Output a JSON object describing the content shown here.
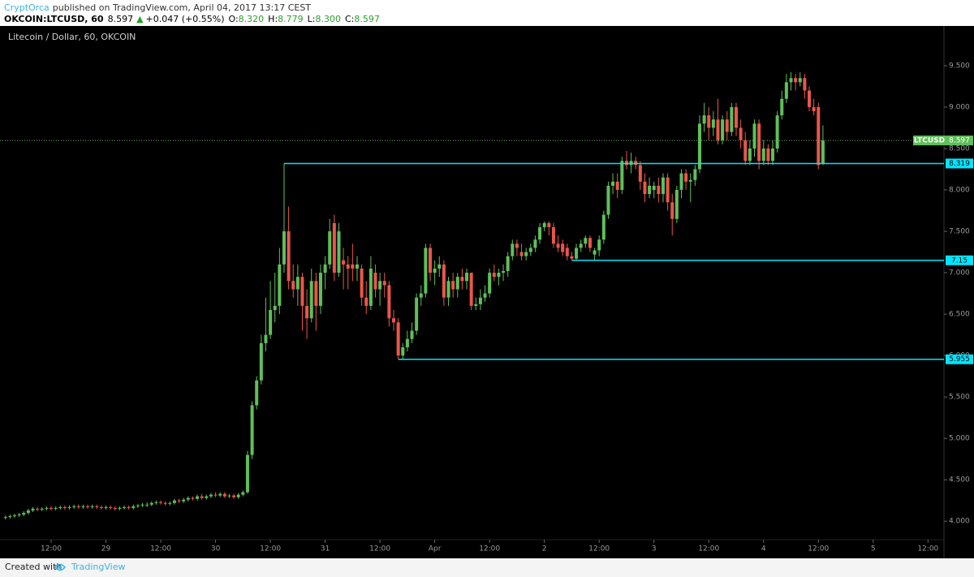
{
  "header": {
    "author": "CryptOrca",
    "published": "published on TradingView.com, April 04, 2017 13:17 CEST",
    "symbol": "OKCOIN:LTCUSD, 60",
    "last": "8.597",
    "arrow": "▲",
    "change": "+0.047 (+0.55%)",
    "ohlc": [
      [
        "O:",
        "8.320"
      ],
      [
        "H:",
        "8.779"
      ],
      [
        "L:",
        "8.300"
      ],
      [
        "C:",
        "8.597"
      ]
    ]
  },
  "footer": {
    "created": "Created with",
    "brand": "TradingView"
  },
  "chart_data": {
    "type": "candlestick",
    "title": "Litecoin / Dollar, 60, OKCOIN",
    "up_color": "#5fbf5a",
    "down_color": "#e9574a",
    "level_color": "#00e5ff",
    "xlim": [
      -1.2,
      205.5
    ],
    "xticks": [
      {
        "value": 10,
        "label": "12:00"
      },
      {
        "value": 22,
        "label": "29"
      },
      {
        "value": 34,
        "label": "12:00"
      },
      {
        "value": 46,
        "label": "30"
      },
      {
        "value": 58,
        "label": "12:00"
      },
      {
        "value": 70,
        "label": "31"
      },
      {
        "value": 82,
        "label": "12:00"
      },
      {
        "value": 94,
        "label": "Apr"
      },
      {
        "value": 106,
        "label": "12:00"
      },
      {
        "value": 118,
        "label": "2"
      },
      {
        "value": 130,
        "label": "12:00"
      },
      {
        "value": 142,
        "label": "3"
      },
      {
        "value": 154,
        "label": "12:00"
      },
      {
        "value": 166,
        "label": "4"
      },
      {
        "value": 178,
        "label": "12:00"
      },
      {
        "value": 190,
        "label": "5"
      },
      {
        "value": 202,
        "label": "12:00"
      }
    ],
    "ylim": [
      3.63,
      9.95
    ],
    "yticks": [
      {
        "value": 4,
        "label": "4.000"
      },
      {
        "value": 4.5,
        "label": "4.500"
      },
      {
        "value": 5,
        "label": "5.000"
      },
      {
        "value": 5.5,
        "label": "5.500"
      },
      {
        "value": 6,
        "label": "6.000"
      },
      {
        "value": 6.5,
        "label": "6.500"
      },
      {
        "value": 7,
        "label": "7.000"
      },
      {
        "value": 7.5,
        "label": "7.500"
      },
      {
        "value": 8,
        "label": "8.000"
      },
      {
        "value": 8.5,
        "label": "8.500"
      },
      {
        "value": 9,
        "label": "9.000"
      },
      {
        "value": 9.5,
        "label": "9.500"
      }
    ],
    "symbol_label": "LTCUSD",
    "last_price": 8.597,
    "levels": [
      {
        "value": 8.319,
        "from": 61
      },
      {
        "value": 7.15,
        "from": 124
      },
      {
        "value": 5.955,
        "from": 86
      }
    ],
    "candles": [
      [
        4.04,
        4.07,
        4.02,
        4.05
      ],
      [
        4.05,
        4.08,
        4.03,
        4.06
      ],
      [
        4.06,
        4.09,
        4.04,
        4.07
      ],
      [
        4.07,
        4.1,
        4.05,
        4.08
      ],
      [
        4.08,
        4.12,
        4.06,
        4.1
      ],
      [
        4.1,
        4.15,
        4.08,
        4.13
      ],
      [
        4.13,
        4.17,
        4.11,
        4.15
      ],
      [
        4.15,
        4.17,
        4.12,
        4.14
      ],
      [
        4.14,
        4.17,
        4.12,
        4.15
      ],
      [
        4.15,
        4.18,
        4.13,
        4.16
      ],
      [
        4.16,
        4.18,
        4.13,
        4.15
      ],
      [
        4.15,
        4.18,
        4.13,
        4.16
      ],
      [
        4.16,
        4.19,
        4.14,
        4.17
      ],
      [
        4.17,
        4.19,
        4.14,
        4.16
      ],
      [
        4.16,
        4.19,
        4.14,
        4.17
      ],
      [
        4.17,
        4.2,
        4.15,
        4.18
      ],
      [
        4.18,
        4.2,
        4.15,
        4.17
      ],
      [
        4.17,
        4.2,
        4.15,
        4.18
      ],
      [
        4.18,
        4.2,
        4.15,
        4.17
      ],
      [
        4.17,
        4.2,
        4.15,
        4.18
      ],
      [
        4.18,
        4.2,
        4.15,
        4.17
      ],
      [
        4.17,
        4.19,
        4.14,
        4.16
      ],
      [
        4.16,
        4.19,
        4.14,
        4.17
      ],
      [
        4.17,
        4.19,
        4.14,
        4.16
      ],
      [
        4.16,
        4.18,
        4.13,
        4.15
      ],
      [
        4.15,
        4.18,
        4.13,
        4.16
      ],
      [
        4.16,
        4.19,
        4.14,
        4.17
      ],
      [
        4.17,
        4.19,
        4.14,
        4.16
      ],
      [
        4.16,
        4.2,
        4.14,
        4.18
      ],
      [
        4.18,
        4.21,
        4.16,
        4.19
      ],
      [
        4.19,
        4.22,
        4.17,
        4.2
      ],
      [
        4.2,
        4.23,
        4.17,
        4.2
      ],
      [
        4.2,
        4.24,
        4.18,
        4.22
      ],
      [
        4.22,
        4.25,
        4.2,
        4.23
      ],
      [
        4.23,
        4.25,
        4.2,
        4.22
      ],
      [
        4.22,
        4.24,
        4.19,
        4.21
      ],
      [
        4.21,
        4.24,
        4.19,
        4.22
      ],
      [
        4.22,
        4.27,
        4.2,
        4.25
      ],
      [
        4.25,
        4.27,
        4.22,
        4.24
      ],
      [
        4.24,
        4.28,
        4.22,
        4.26
      ],
      [
        4.26,
        4.3,
        4.24,
        4.28
      ],
      [
        4.28,
        4.3,
        4.25,
        4.27
      ],
      [
        4.27,
        4.32,
        4.25,
        4.3
      ],
      [
        4.3,
        4.33,
        4.26,
        4.28
      ],
      [
        4.28,
        4.32,
        4.26,
        4.3
      ],
      [
        4.3,
        4.34,
        4.28,
        4.32
      ],
      [
        4.32,
        4.35,
        4.29,
        4.31
      ],
      [
        4.31,
        4.35,
        4.29,
        4.33
      ],
      [
        4.33,
        4.35,
        4.28,
        4.3
      ],
      [
        4.3,
        4.33,
        4.28,
        4.31
      ],
      [
        4.31,
        4.33,
        4.27,
        4.29
      ],
      [
        4.29,
        4.34,
        4.27,
        4.32
      ],
      [
        4.32,
        4.37,
        4.3,
        4.35
      ],
      [
        4.35,
        4.85,
        4.33,
        4.8
      ],
      [
        4.8,
        5.45,
        4.75,
        5.4
      ],
      [
        5.4,
        5.75,
        5.35,
        5.7
      ],
      [
        5.7,
        6.25,
        5.65,
        6.15
      ],
      [
        6.15,
        6.7,
        6.05,
        6.25
      ],
      [
        6.25,
        6.9,
        6.2,
        6.55
      ],
      [
        6.55,
        7.0,
        6.4,
        6.6
      ],
      [
        6.6,
        7.3,
        6.5,
        7.1
      ],
      [
        7.1,
        8.32,
        7.0,
        7.5
      ],
      [
        7.5,
        7.8,
        6.8,
        6.9
      ],
      [
        6.9,
        7.1,
        6.7,
        6.8
      ],
      [
        6.8,
        7.1,
        6.6,
        6.95
      ],
      [
        6.95,
        7.0,
        6.3,
        6.6
      ],
      [
        6.6,
        6.8,
        6.2,
        6.45
      ],
      [
        6.45,
        7.05,
        6.4,
        6.9
      ],
      [
        6.9,
        7.0,
        6.3,
        6.6
      ],
      [
        6.6,
        7.1,
        6.5,
        7.0
      ],
      [
        7.0,
        7.2,
        6.8,
        7.1
      ],
      [
        7.1,
        7.65,
        7.05,
        7.5
      ],
      [
        7.6,
        7.7,
        6.9,
        7.0
      ],
      [
        7.0,
        7.6,
        6.95,
        7.5
      ],
      [
        7.15,
        7.3,
        6.8,
        7.1
      ],
      [
        7.1,
        7.2,
        6.8,
        7.05
      ],
      [
        7.1,
        7.35,
        6.9,
        7.05
      ],
      [
        7.05,
        7.2,
        6.9,
        7.1
      ],
      [
        7.05,
        7.1,
        6.6,
        6.7
      ],
      [
        6.7,
        6.9,
        6.5,
        6.6
      ],
      [
        6.6,
        7.2,
        6.55,
        7.05
      ],
      [
        7.0,
        7.1,
        6.7,
        6.8
      ],
      [
        6.8,
        7.0,
        6.6,
        6.9
      ],
      [
        6.9,
        7.0,
        6.7,
        6.85
      ],
      [
        6.85,
        6.9,
        6.35,
        6.45
      ],
      [
        6.45,
        6.55,
        6.3,
        6.4
      ],
      [
        6.4,
        6.45,
        5.955,
        6.0
      ],
      [
        6.0,
        6.15,
        5.96,
        6.1
      ],
      [
        6.1,
        6.3,
        6.05,
        6.2
      ],
      [
        6.2,
        6.4,
        6.15,
        6.3
      ],
      [
        6.3,
        6.75,
        6.25,
        6.7
      ],
      [
        6.7,
        6.85,
        6.6,
        6.75
      ],
      [
        6.75,
        7.35,
        6.7,
        7.3
      ],
      [
        7.3,
        7.35,
        6.9,
        7.0
      ],
      [
        7.0,
        7.15,
        6.85,
        7.05
      ],
      [
        7.05,
        7.2,
        6.95,
        7.1
      ],
      [
        7.1,
        7.15,
        6.6,
        6.7
      ],
      [
        6.7,
        6.95,
        6.6,
        6.9
      ],
      [
        6.9,
        7.0,
        6.7,
        6.8
      ],
      [
        6.8,
        7.0,
        6.7,
        6.95
      ],
      [
        6.95,
        7.05,
        6.8,
        6.9
      ],
      [
        6.9,
        7.05,
        6.8,
        7.0
      ],
      [
        7.0,
        7.0,
        6.55,
        6.6
      ],
      [
        6.6,
        6.7,
        6.55,
        6.62
      ],
      [
        6.62,
        6.8,
        6.55,
        6.7
      ],
      [
        6.7,
        6.85,
        6.65,
        6.75
      ],
      [
        6.75,
        7.05,
        6.7,
        7.0
      ],
      [
        7.0,
        7.1,
        6.9,
        6.95
      ],
      [
        6.95,
        7.05,
        6.85,
        7.0
      ],
      [
        7.0,
        7.1,
        6.9,
        7.02
      ],
      [
        7.02,
        7.25,
        6.95,
        7.2
      ],
      [
        7.2,
        7.4,
        7.15,
        7.35
      ],
      [
        7.35,
        7.4,
        7.2,
        7.3
      ],
      [
        7.25,
        7.35,
        7.15,
        7.2
      ],
      [
        7.2,
        7.3,
        7.15,
        7.25
      ],
      [
        7.25,
        7.35,
        7.2,
        7.3
      ],
      [
        7.3,
        7.45,
        7.25,
        7.4
      ],
      [
        7.4,
        7.6,
        7.35,
        7.55
      ],
      [
        7.55,
        7.62,
        7.5,
        7.6
      ],
      [
        7.6,
        7.62,
        7.45,
        7.55
      ],
      [
        7.55,
        7.6,
        7.3,
        7.35
      ],
      [
        7.35,
        7.45,
        7.25,
        7.3
      ],
      [
        7.35,
        7.4,
        7.2,
        7.25
      ],
      [
        7.3,
        7.35,
        7.15,
        7.2
      ],
      [
        7.2,
        7.25,
        7.15,
        7.17
      ],
      [
        7.17,
        7.35,
        7.15,
        7.3
      ],
      [
        7.3,
        7.4,
        7.25,
        7.35
      ],
      [
        7.35,
        7.45,
        7.3,
        7.42
      ],
      [
        7.42,
        7.45,
        7.25,
        7.3
      ],
      [
        7.22,
        7.3,
        7.15,
        7.27
      ],
      [
        7.27,
        7.45,
        7.2,
        7.4
      ],
      [
        7.4,
        7.75,
        7.35,
        7.7
      ],
      [
        7.7,
        8.1,
        7.65,
        8.05
      ],
      [
        8.05,
        8.2,
        7.95,
        8.1
      ],
      [
        8.1,
        8.2,
        7.9,
        8.0
      ],
      [
        8.0,
        8.4,
        7.95,
        8.35
      ],
      [
        8.35,
        8.47,
        8.25,
        8.3
      ],
      [
        8.3,
        8.45,
        8.2,
        8.35
      ],
      [
        8.35,
        8.4,
        8.25,
        8.3
      ],
      [
        8.3,
        8.35,
        8.0,
        8.1
      ],
      [
        8.1,
        8.2,
        7.85,
        7.95
      ],
      [
        7.95,
        8.15,
        7.9,
        8.05
      ],
      [
        8.0,
        8.1,
        7.9,
        8.05
      ],
      [
        8.05,
        8.15,
        7.85,
        7.95
      ],
      [
        7.95,
        8.2,
        7.85,
        8.15
      ],
      [
        8.15,
        8.2,
        7.75,
        7.85
      ],
      [
        7.85,
        7.95,
        7.45,
        7.65
      ],
      [
        7.65,
        8.05,
        7.6,
        8.0
      ],
      [
        8.0,
        8.25,
        7.9,
        8.2
      ],
      [
        8.2,
        8.25,
        8.0,
        8.1
      ],
      [
        8.1,
        8.2,
        7.85,
        8.12
      ],
      [
        8.12,
        8.3,
        8.05,
        8.25
      ],
      [
        8.25,
        8.9,
        8.2,
        8.8
      ],
      [
        8.8,
        9.05,
        8.7,
        8.9
      ],
      [
        8.9,
        9.0,
        8.6,
        8.75
      ],
      [
        8.75,
        8.95,
        8.65,
        8.85
      ],
      [
        8.85,
        9.1,
        8.55,
        8.6
      ],
      [
        8.6,
        8.9,
        8.55,
        8.85
      ],
      [
        8.85,
        8.95,
        8.6,
        8.7
      ],
      [
        8.7,
        9.05,
        8.65,
        9.0
      ],
      [
        9.0,
        9.05,
        8.65,
        8.75
      ],
      [
        8.75,
        8.85,
        8.5,
        8.6
      ],
      [
        8.6,
        8.7,
        8.3,
        8.35
      ],
      [
        8.35,
        8.6,
        8.3,
        8.5
      ],
      [
        8.5,
        8.85,
        8.4,
        8.8
      ],
      [
        8.8,
        8.85,
        8.25,
        8.35
      ],
      [
        8.35,
        8.6,
        8.3,
        8.5
      ],
      [
        8.5,
        8.55,
        8.3,
        8.35
      ],
      [
        8.35,
        8.6,
        8.3,
        8.5
      ],
      [
        8.5,
        8.95,
        8.45,
        8.9
      ],
      [
        8.9,
        9.2,
        8.85,
        9.1
      ],
      [
        9.1,
        9.4,
        9.05,
        9.3
      ],
      [
        9.3,
        9.42,
        9.2,
        9.35
      ],
      [
        9.35,
        9.4,
        9.2,
        9.3
      ],
      [
        9.3,
        9.42,
        9.25,
        9.35
      ],
      [
        9.35,
        9.4,
        9.1,
        9.2
      ],
      [
        9.2,
        9.25,
        8.95,
        9.0
      ],
      [
        9.0,
        9.1,
        8.9,
        8.95
      ],
      [
        9.0,
        9.05,
        8.25,
        8.3
      ],
      [
        8.32,
        8.779,
        8.3,
        8.597
      ]
    ]
  }
}
